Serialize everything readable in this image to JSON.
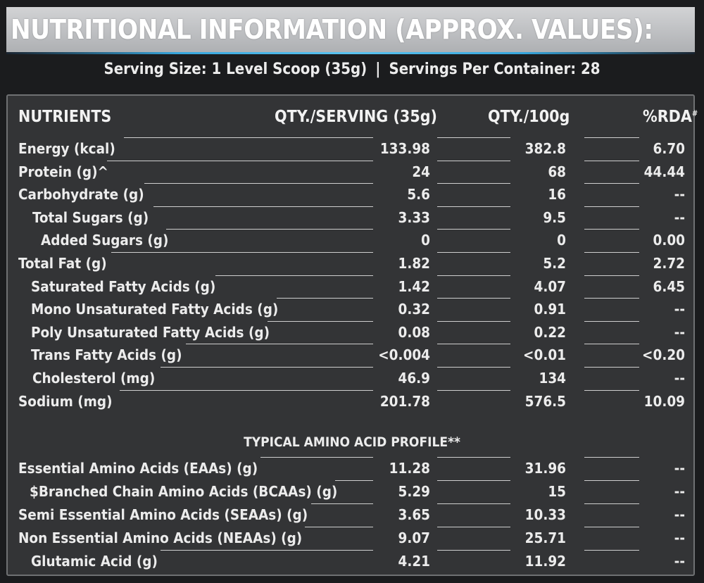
{
  "title": "NUTRITIONAL INFORMATION (APPROX. VALUES):",
  "serving": {
    "size": "Serving Size: 1 Level Scoop (35g)",
    "separator": "|",
    "per_container": "Servings Per Container: 28"
  },
  "table_header": {
    "nutrients": "NUTRIENTS",
    "qty_serving": "QTY./SERVING (35g)",
    "qty_100g": "QTY./100g",
    "rda": "%RDA",
    "rda_mark": "#"
  },
  "nutrients": [
    {
      "label": "Energy (kcal)",
      "serving": "133.98",
      "per100": "382.8",
      "rda": "6.70"
    },
    {
      "label": "Protein (g)^",
      "serving": "24",
      "per100": "68",
      "rda": "44.44"
    },
    {
      "label": "Carbohydrate (g)",
      "serving": "5.6",
      "per100": "16",
      "rda": "--"
    },
    {
      "label": "Total Sugars (g)",
      "serving": "3.33",
      "per100": "9.5",
      "rda": "--"
    },
    {
      "label": "Added Sugars (g)",
      "serving": "0",
      "per100": "0",
      "rda": "0.00"
    },
    {
      "label": "Total Fat (g)",
      "serving": "1.82",
      "per100": "5.2",
      "rda": "2.72"
    },
    {
      "label": "Saturated Fatty Acids (g)",
      "serving": "1.42",
      "per100": "4.07",
      "rda": "6.45"
    },
    {
      "label": "Mono Unsaturated Fatty Acids (g)",
      "serving": "0.32",
      "per100": "0.91",
      "rda": "--"
    },
    {
      "label": "Poly Unsaturated Fatty Acids (g)",
      "serving": "0.08",
      "per100": "0.22",
      "rda": "--"
    },
    {
      "label": "Trans Fatty Acids (g)",
      "serving": "<0.004",
      "per100": "<0.01",
      "rda": "<0.20"
    },
    {
      "label": "Cholesterol (mg)",
      "serving": "46.9",
      "per100": "134",
      "rda": "--"
    },
    {
      "label": "Sodium (mg)",
      "serving": "201.78",
      "per100": "576.5",
      "rda": "10.09"
    }
  ],
  "amino_title": "TYPICAL AMINO ACID PROFILE**",
  "amino_acids": [
    {
      "label": "Essential Amino Acids (EAAs) (g)",
      "serving": "11.28",
      "per100": "31.96",
      "rda": "--"
    },
    {
      "label": "$Branched Chain Amino Acids (BCAAs) (g)",
      "serving": "5.29",
      "per100": "15",
      "rda": "--"
    },
    {
      "label": "Semi Essential Amino Acids (SEAAs) (g)",
      "serving": "3.65",
      "per100": "10.33",
      "rda": "--"
    },
    {
      "label": "Non Essential Amino Acids (NEAAs) (g)",
      "serving": "9.07",
      "per100": "25.71",
      "rda": "--"
    },
    {
      "label": "Glutamic Acid (g)",
      "serving": "4.21",
      "per100": "11.92",
      "rda": "--"
    }
  ]
}
